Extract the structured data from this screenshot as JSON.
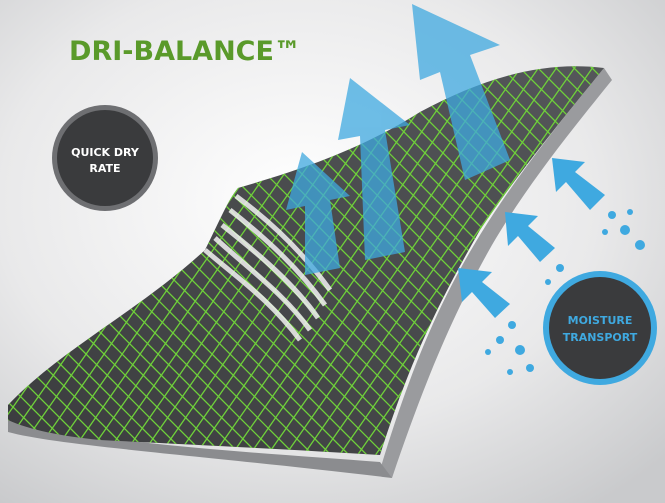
{
  "title": "DRI-BALANCE™",
  "badges": [
    {
      "lines": [
        "QUICK DRY",
        "RATE"
      ]
    },
    {
      "lines": [
        "MOISTURE",
        "TRANSPORT"
      ]
    }
  ]
}
